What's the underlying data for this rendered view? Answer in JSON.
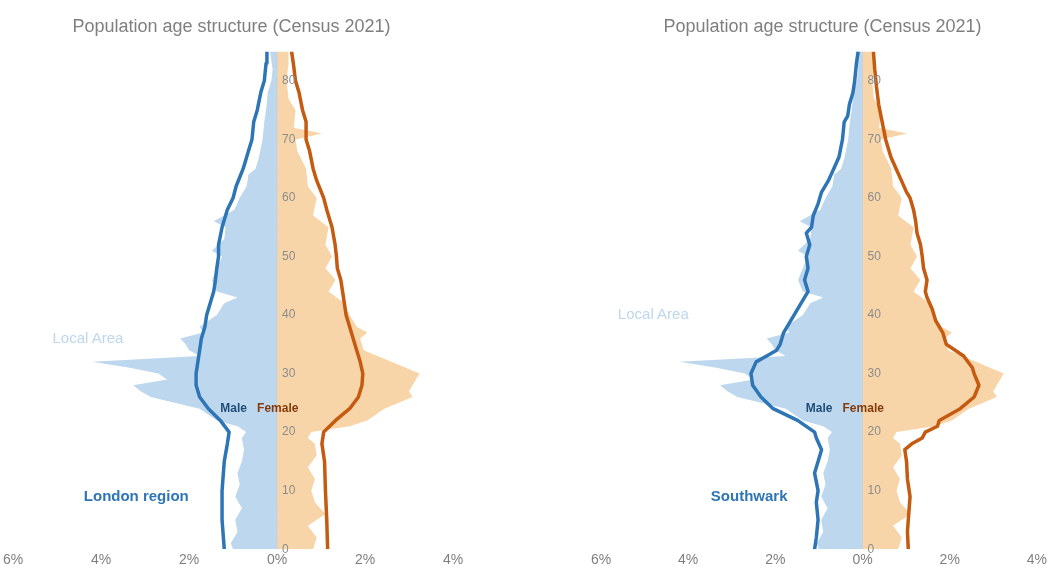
{
  "chart_data": [
    {
      "type": "area",
      "title": "Population age structure (Census 2021)",
      "orientation": "horizontal",
      "legend": false,
      "marker": "none",
      "xlim": [
        -6,
        4
      ],
      "xticks": [
        {
          "value": -6,
          "label": "6%"
        },
        {
          "value": -4,
          "label": "4%"
        },
        {
          "value": -2,
          "label": "2%"
        },
        {
          "value": 0,
          "label": "0%"
        },
        {
          "value": 2,
          "label": "2%"
        },
        {
          "value": 4,
          "label": "4%"
        }
      ],
      "ylim": [
        0,
        85
      ],
      "yticks": [
        0,
        10,
        20,
        30,
        40,
        50,
        60,
        70,
        80
      ],
      "annotations": [
        "Male",
        "Female"
      ],
      "series": [
        {
          "type": "area",
          "name": "Local Area",
          "color": "#bdd7ee",
          "x": [
            0,
            1,
            3,
            5,
            7,
            9,
            11,
            13,
            15,
            17,
            19,
            20,
            21,
            22,
            24,
            26,
            27,
            28,
            29,
            30,
            31,
            32,
            33,
            34,
            35,
            36,
            37,
            38,
            40,
            42,
            43,
            44,
            46,
            48,
            50,
            51,
            53,
            55,
            56,
            58,
            60,
            62,
            64,
            65,
            67,
            70,
            73,
            75,
            78,
            80,
            82,
            85
          ],
          "values": [
            -1.0,
            -1.05,
            -0.9,
            -0.95,
            -0.8,
            -0.95,
            -0.85,
            -0.9,
            -0.8,
            -0.75,
            -0.8,
            -0.7,
            -0.9,
            -1.37,
            -1.76,
            -2.87,
            -3.1,
            -3.27,
            -2.5,
            -2.7,
            -3.35,
            -4.2,
            -1.76,
            -2.0,
            -2.08,
            -2.2,
            -1.68,
            -1.76,
            -1.37,
            -1.2,
            -0.9,
            -1.37,
            -1.48,
            -1.37,
            -1.25,
            -1.48,
            -1.2,
            -1.17,
            -1.44,
            -0.97,
            -0.85,
            -0.69,
            -0.65,
            -0.49,
            -0.41,
            -0.33,
            -0.29,
            -0.25,
            -0.21,
            -0.13,
            -0.1,
            -0.16
          ]
        },
        {
          "type": "area",
          "color": "#f8d5a8",
          "x": [
            0,
            2,
            4,
            6,
            8,
            10,
            12,
            14,
            16,
            18,
            19,
            20,
            21,
            22,
            24,
            26,
            27,
            28,
            30,
            32,
            34,
            36,
            37,
            38,
            40,
            42,
            44,
            46,
            48,
            50,
            52,
            55,
            57,
            60,
            62,
            65,
            68,
            70,
            71,
            72,
            75,
            77,
            80,
            83,
            85
          ],
          "values": [
            0.82,
            0.9,
            0.7,
            1.1,
            0.86,
            0.78,
            0.86,
            0.7,
            0.9,
            0.86,
            0.7,
            0.78,
            1.65,
            2.05,
            2.44,
            3.08,
            3.0,
            3.08,
            3.24,
            2.6,
            1.97,
            1.89,
            2.05,
            1.81,
            1.65,
            1.53,
            1.17,
            1.33,
            1.1,
            1.25,
            1.1,
            1.17,
            0.82,
            0.9,
            0.7,
            0.66,
            0.46,
            0.42,
            1.02,
            0.38,
            0.42,
            0.26,
            0.22,
            0.26,
            0.26
          ]
        },
        {
          "type": "line",
          "name": "London region",
          "color": "#2e75b6",
          "x": [
            0,
            5,
            10,
            15,
            18,
            20,
            22,
            24,
            26,
            28,
            30,
            32,
            34,
            36,
            38,
            40,
            42,
            44,
            46,
            48,
            50,
            52,
            55,
            58,
            60,
            62,
            65,
            68,
            70,
            73,
            75,
            78,
            80,
            83,
            85
          ],
          "values": [
            -1.2,
            -1.25,
            -1.25,
            -1.2,
            -1.13,
            -1.09,
            -1.29,
            -1.56,
            -1.76,
            -1.84,
            -1.84,
            -1.8,
            -1.76,
            -1.72,
            -1.64,
            -1.6,
            -1.52,
            -1.44,
            -1.4,
            -1.37,
            -1.33,
            -1.33,
            -1.25,
            -1.13,
            -1.0,
            -0.93,
            -0.77,
            -0.65,
            -0.57,
            -0.53,
            -0.45,
            -0.37,
            -0.29,
            -0.25,
            -0.23
          ]
        },
        {
          "type": "line",
          "color": "#c55a11",
          "x": [
            0,
            5,
            10,
            15,
            18,
            20,
            22,
            24,
            26,
            28,
            30,
            32,
            34,
            36,
            38,
            40,
            42,
            44,
            46,
            48,
            50,
            52,
            55,
            58,
            60,
            63,
            65,
            68,
            70,
            73,
            75,
            78,
            80,
            83,
            85
          ],
          "values": [
            1.15,
            1.13,
            1.1,
            1.08,
            1.02,
            1.06,
            1.33,
            1.65,
            1.85,
            1.93,
            1.95,
            1.89,
            1.81,
            1.73,
            1.65,
            1.57,
            1.53,
            1.49,
            1.45,
            1.37,
            1.35,
            1.32,
            1.25,
            1.13,
            1.06,
            0.9,
            0.82,
            0.74,
            0.66,
            0.66,
            0.58,
            0.5,
            0.42,
            0.37,
            0.33
          ]
        }
      ]
    },
    {
      "type": "area",
      "title": "Population age structure (Census 2021)",
      "orientation": "horizontal",
      "legend": false,
      "marker": "none",
      "xlim": [
        -6,
        4
      ],
      "xticks": [
        {
          "value": -6,
          "label": "6%"
        },
        {
          "value": -4,
          "label": "4%"
        },
        {
          "value": -2,
          "label": "2%"
        },
        {
          "value": 0,
          "label": "0%"
        },
        {
          "value": 2,
          "label": "2%"
        },
        {
          "value": 4,
          "label": "4%"
        }
      ],
      "ylim": [
        0,
        85
      ],
      "yticks": [
        0,
        10,
        20,
        30,
        40,
        50,
        60,
        70,
        80
      ],
      "annotations": [
        "Male",
        "Female"
      ],
      "series": [
        {
          "type": "area",
          "name": "Local Area",
          "color": "#bdd7ee",
          "x": [
            0,
            1,
            3,
            5,
            7,
            9,
            11,
            13,
            15,
            17,
            19,
            20,
            21,
            22,
            24,
            26,
            27,
            28,
            29,
            30,
            31,
            32,
            33,
            34,
            35,
            36,
            37,
            38,
            40,
            42,
            43,
            44,
            46,
            48,
            50,
            51,
            53,
            55,
            56,
            58,
            60,
            62,
            64,
            65,
            67,
            70,
            73,
            75,
            78,
            80,
            82,
            85
          ],
          "values": [
            -1.0,
            -1.05,
            -0.9,
            -0.95,
            -0.8,
            -0.95,
            -0.85,
            -0.9,
            -0.8,
            -0.75,
            -0.8,
            -0.7,
            -0.9,
            -1.37,
            -1.76,
            -2.87,
            -3.1,
            -3.27,
            -2.5,
            -2.7,
            -3.35,
            -4.2,
            -1.76,
            -2.0,
            -2.08,
            -2.2,
            -1.68,
            -1.76,
            -1.37,
            -1.2,
            -0.9,
            -1.37,
            -1.48,
            -1.37,
            -1.25,
            -1.48,
            -1.2,
            -1.17,
            -1.44,
            -0.97,
            -0.85,
            -0.69,
            -0.65,
            -0.49,
            -0.41,
            -0.33,
            -0.29,
            -0.25,
            -0.21,
            -0.13,
            -0.1,
            -0.16
          ]
        },
        {
          "type": "area",
          "color": "#f8d5a8",
          "x": [
            0,
            2,
            4,
            6,
            8,
            10,
            12,
            14,
            16,
            18,
            19,
            20,
            21,
            22,
            24,
            26,
            27,
            28,
            30,
            32,
            34,
            36,
            37,
            38,
            40,
            42,
            44,
            46,
            48,
            50,
            52,
            55,
            57,
            60,
            62,
            65,
            68,
            70,
            71,
            72,
            75,
            77,
            80,
            83,
            85
          ],
          "values": [
            0.82,
            0.9,
            0.7,
            1.1,
            0.86,
            0.78,
            0.86,
            0.7,
            0.9,
            0.86,
            0.7,
            0.78,
            1.65,
            2.05,
            2.44,
            3.08,
            3.0,
            3.08,
            3.24,
            2.6,
            1.97,
            1.89,
            2.05,
            1.81,
            1.65,
            1.53,
            1.17,
            1.33,
            1.1,
            1.25,
            1.1,
            1.17,
            0.82,
            0.9,
            0.7,
            0.66,
            0.46,
            0.42,
            1.02,
            0.38,
            0.42,
            0.26,
            0.22,
            0.26,
            0.26
          ]
        },
        {
          "type": "line",
          "name": "Southwark",
          "color": "#2e75b6",
          "x": [
            0,
            2,
            5,
            8,
            10,
            13,
            15,
            17,
            19,
            20,
            22,
            24,
            26,
            28,
            30,
            32,
            33,
            34,
            35,
            37,
            39,
            41,
            43,
            44,
            46,
            48,
            50,
            52,
            54,
            55,
            57,
            59,
            61,
            63,
            65,
            67,
            70,
            73,
            74,
            76,
            78,
            80,
            83,
            85
          ],
          "values": [
            -1.1,
            -1.06,
            -1.02,
            -1.06,
            -1.02,
            -1.1,
            -1.02,
            -0.94,
            -1.06,
            -1.1,
            -1.49,
            -2.05,
            -2.33,
            -2.52,
            -2.56,
            -2.44,
            -2.2,
            -1.97,
            -1.89,
            -1.81,
            -1.65,
            -1.49,
            -1.33,
            -1.25,
            -1.33,
            -1.25,
            -1.29,
            -1.21,
            -1.29,
            -1.17,
            -1.13,
            -1.02,
            -0.94,
            -0.78,
            -0.66,
            -0.54,
            -0.46,
            -0.42,
            -0.34,
            -0.3,
            -0.22,
            -0.18,
            -0.14,
            -0.1
          ]
        },
        {
          "type": "line",
          "color": "#c55a11",
          "x": [
            0,
            3,
            6,
            9,
            12,
            15,
            17,
            18,
            19,
            20,
            21,
            22,
            24,
            26,
            28,
            30,
            31,
            33,
            35,
            37,
            39,
            41,
            43,
            44,
            46,
            48,
            50,
            52,
            54,
            56,
            58,
            60,
            61,
            63,
            65,
            67,
            70,
            73,
            76,
            79,
            82,
            85
          ],
          "values": [
            1.05,
            1.03,
            1.06,
            1.09,
            1.03,
            1.01,
            0.97,
            1.13,
            1.37,
            1.44,
            1.72,
            1.76,
            2.24,
            2.56,
            2.67,
            2.56,
            2.52,
            2.32,
            1.92,
            1.84,
            1.68,
            1.6,
            1.48,
            1.44,
            1.48,
            1.4,
            1.37,
            1.33,
            1.25,
            1.22,
            1.17,
            1.09,
            1.01,
            0.89,
            0.77,
            0.65,
            0.53,
            0.45,
            0.37,
            0.32,
            0.28,
            0.25
          ]
        }
      ]
    }
  ]
}
